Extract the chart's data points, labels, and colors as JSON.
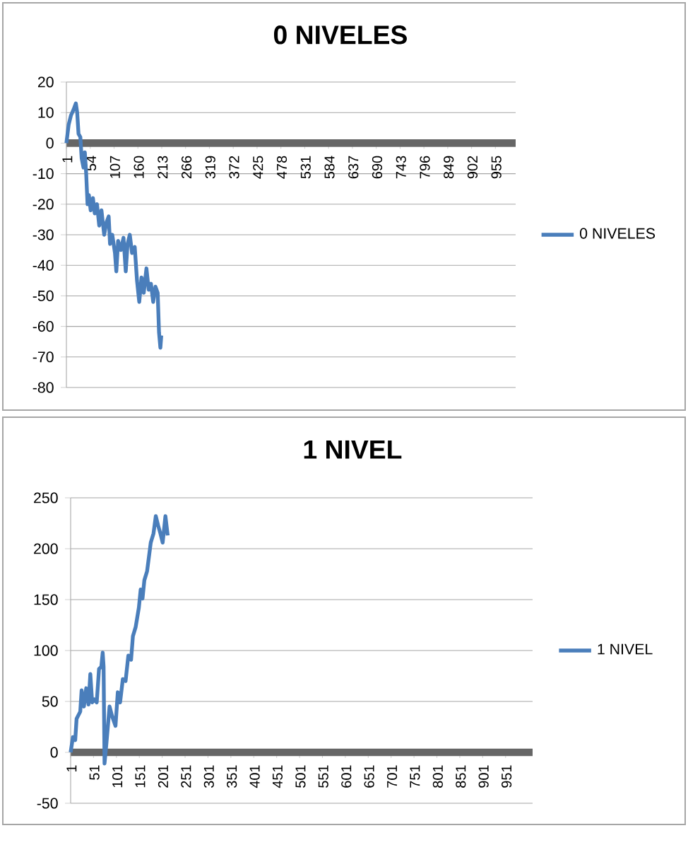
{
  "chart_data": [
    {
      "type": "line",
      "title": "0 NIVELES",
      "xlim": [
        1,
        1000
      ],
      "ylim": [
        -80,
        20
      ],
      "xticks": [
        1,
        54,
        107,
        160,
        213,
        266,
        319,
        372,
        425,
        478,
        531,
        584,
        637,
        690,
        743,
        796,
        849,
        902,
        955
      ],
      "yticks": [
        -80,
        -70,
        -60,
        -50,
        -40,
        -30,
        -20,
        -10,
        0,
        10,
        20
      ],
      "grid": "y",
      "legend": "right",
      "marker": "none",
      "series": [
        {
          "name": "0 NIVELES",
          "color": "#4a7ebb",
          "x": [
            1,
            6,
            11,
            17,
            22,
            25,
            28,
            32,
            35,
            39,
            42,
            45,
            48,
            51,
            55,
            60,
            64,
            69,
            74,
            79,
            85,
            90,
            95,
            98,
            103,
            109,
            112,
            116,
            122,
            128,
            133,
            137,
            142,
            147,
            153,
            158,
            163,
            168,
            173,
            179,
            184,
            189,
            194,
            199,
            204,
            207,
            210,
            212
          ],
          "values": [
            0,
            6,
            9,
            11,
            13,
            10,
            3,
            2,
            -5,
            -8,
            -3,
            -10,
            -20,
            -17,
            -22,
            -18,
            -23,
            -20,
            -27,
            -22,
            -30,
            -26,
            -24,
            -33,
            -30,
            -36,
            -42,
            -32,
            -35,
            -31,
            -42,
            -33,
            -30,
            -36,
            -34,
            -45,
            -52,
            -44,
            -49,
            -41,
            -48,
            -46,
            -52,
            -47,
            -49,
            -62,
            -67,
            -63
          ]
        }
      ]
    },
    {
      "type": "line",
      "title": "1 NIVEL",
      "xlim": [
        1,
        1010
      ],
      "ylim": [
        -50,
        250
      ],
      "xticks": [
        1,
        51,
        101,
        151,
        201,
        251,
        301,
        351,
        401,
        451,
        501,
        551,
        601,
        651,
        701,
        751,
        801,
        851,
        901,
        951
      ],
      "yticks": [
        -50,
        0,
        50,
        100,
        150,
        200,
        250
      ],
      "grid": "y",
      "legend": "right",
      "marker": "none",
      "series": [
        {
          "name": "1 NIVEL",
          "color": "#4a7ebb",
          "x": [
            1,
            6,
            11,
            14,
            22,
            25,
            30,
            35,
            40,
            44,
            48,
            53,
            58,
            63,
            68,
            71,
            73,
            75,
            79,
            86,
            92,
            99,
            104,
            109,
            115,
            121,
            127,
            133,
            137,
            143,
            150,
            154,
            158,
            162,
            168,
            172,
            176,
            182,
            187,
            192,
            197,
            202,
            208,
            213
          ],
          "values": [
            0,
            15,
            12,
            33,
            40,
            61,
            45,
            63,
            47,
            77,
            49,
            52,
            49,
            82,
            84,
            98,
            84,
            -11,
            8,
            45,
            35,
            26,
            59,
            49,
            72,
            70,
            95,
            91,
            114,
            123,
            142,
            160,
            151,
            169,
            178,
            192,
            206,
            215,
            232,
            223,
            215,
            206,
            232,
            213
          ]
        }
      ]
    }
  ]
}
